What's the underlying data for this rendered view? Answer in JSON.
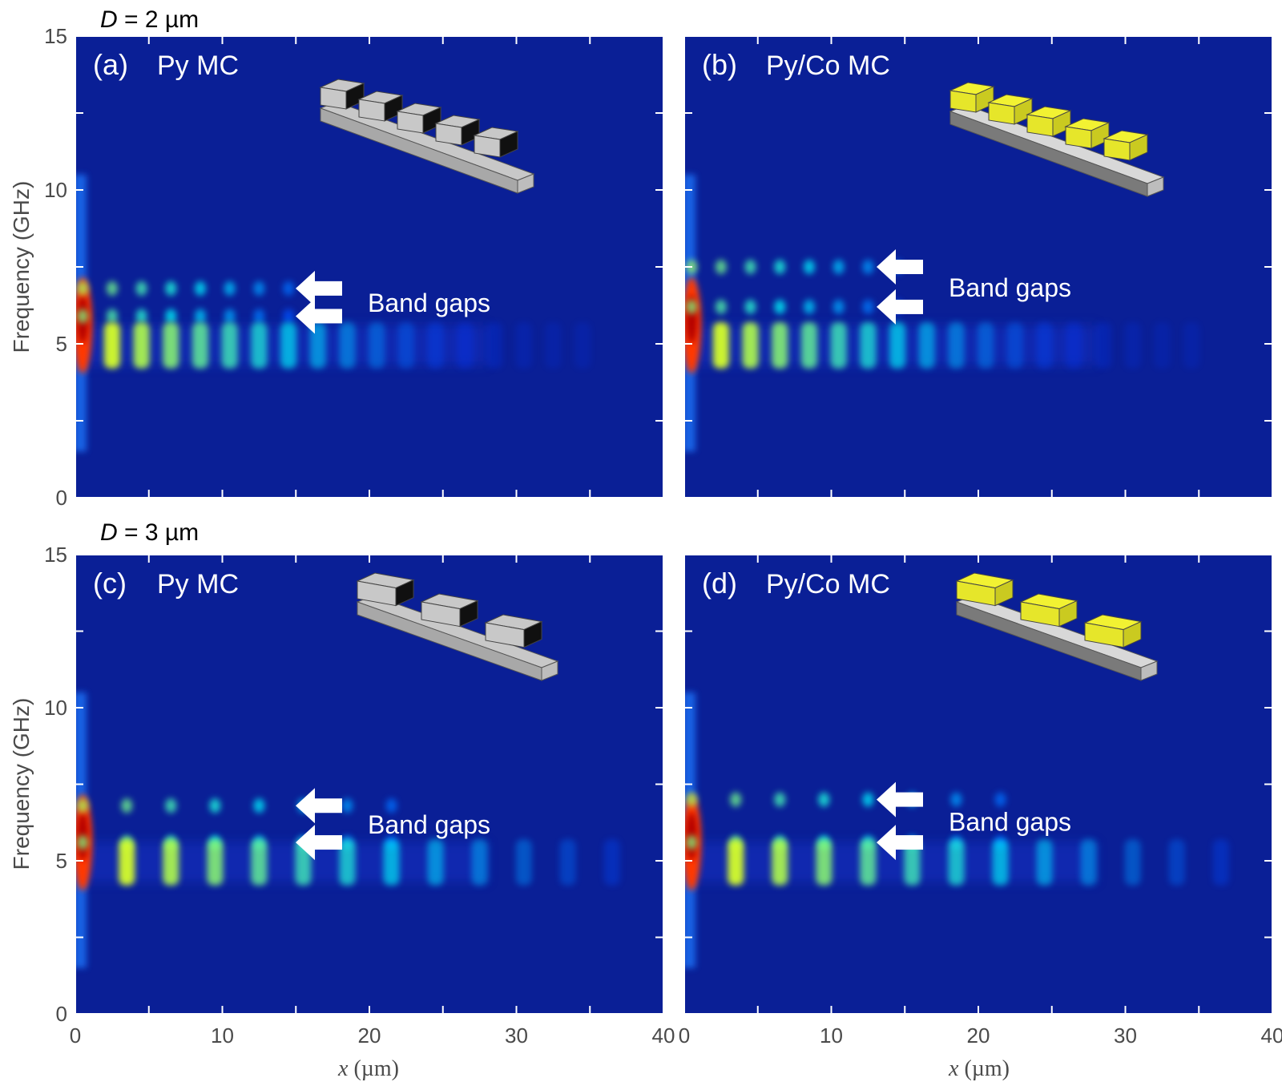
{
  "figure": {
    "row_titles": [
      {
        "var": "D",
        "rest": " = 2 µm"
      },
      {
        "var": "D",
        "rest": " = 3 µm"
      }
    ],
    "ylabel": "Frequency (GHz)",
    "xlabel_var": "x",
    "xlabel_unit": "(µm)",
    "xticks": [
      "0",
      "10",
      "20",
      "30",
      "40"
    ],
    "yticks": [
      "0",
      "5",
      "10",
      "15"
    ],
    "annotation": "Band gaps",
    "colors": {
      "background": "#0a1f96",
      "sample_py_top": "#c8c8c8",
      "sample_py_dark": "#101010",
      "sample_co_top": "#f2f232",
      "sample_base": "#bdbdbd"
    }
  },
  "chart_data": [
    {
      "type": "heatmap",
      "panel": "(a)",
      "label": "Py MC",
      "row": "D = 2 µm",
      "xlim": [
        0,
        40
      ],
      "ylim": [
        0,
        15
      ],
      "colormap": "jet",
      "x_peaks": [
        0.5,
        2.5,
        4.5,
        6.5,
        8.5,
        10.5,
        12.5,
        14.5,
        16.5,
        18.5,
        20.5,
        22.5,
        24.5,
        26.5,
        28.5,
        30.5,
        32.5,
        34.5
      ],
      "band_center_ghz": 5.0,
      "band_gaps_ghz": [
        6.8,
        5.9
      ]
    },
    {
      "type": "heatmap",
      "panel": "(b)",
      "label": "Py/Co MC",
      "row": "D = 2 µm",
      "xlim": [
        0,
        40
      ],
      "ylim": [
        0,
        15
      ],
      "colormap": "jet",
      "x_peaks": [
        0.5,
        2.5,
        4.5,
        6.5,
        8.5,
        10.5,
        12.5,
        14.5,
        16.5,
        18.5,
        20.5,
        22.5,
        24.5,
        26.5,
        28.5,
        30.5,
        32.5,
        34.5
      ],
      "band_center_ghz": 5.0,
      "band_gaps_ghz": [
        7.5,
        6.2
      ]
    },
    {
      "type": "heatmap",
      "panel": "(c)",
      "label": "Py MC",
      "row": "D = 3 µm",
      "xlim": [
        0,
        40
      ],
      "ylim": [
        0,
        15
      ],
      "colormap": "jet",
      "x_peaks": [
        0.5,
        3.5,
        6.5,
        9.5,
        12.5,
        15.5,
        18.5,
        21.5,
        24.5,
        27.5,
        30.5,
        33.5,
        36.5
      ],
      "band_center_ghz": 5.0,
      "band_gaps_ghz": [
        6.8,
        5.6
      ]
    },
    {
      "type": "heatmap",
      "panel": "(d)",
      "label": "Py/Co MC",
      "row": "D = 3 µm",
      "xlim": [
        0,
        40
      ],
      "ylim": [
        0,
        15
      ],
      "colormap": "jet",
      "x_peaks": [
        0.5,
        3.5,
        6.5,
        9.5,
        12.5,
        15.5,
        18.5,
        21.5,
        24.5,
        27.5,
        30.5,
        33.5,
        36.5
      ],
      "band_center_ghz": 5.0,
      "band_gaps_ghz": [
        7.0,
        5.6
      ]
    }
  ]
}
